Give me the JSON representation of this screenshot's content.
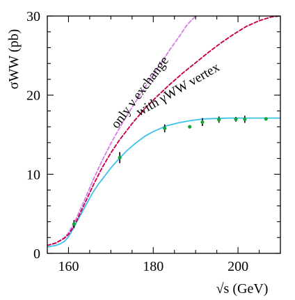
{
  "chart_data": {
    "type": "line",
    "xlabel": "√s (GeV)",
    "ylabel": "σWW (pb)",
    "xlim": [
      155,
      210
    ],
    "ylim": [
      0,
      30
    ],
    "xticks": [
      160,
      180,
      200
    ],
    "yticks": [
      0,
      10,
      20,
      30
    ],
    "grid": false,
    "colors": {
      "sm": "#3cc0ee",
      "nu_only": "#d67fe6",
      "no_zww": "#c8004a",
      "points": "#1aa33a",
      "errorbar": "#000000"
    },
    "annotations": [
      {
        "text": "only ν exchange",
        "anchor_x": 171.5,
        "anchor_y": 15.7,
        "rotation_deg": -53
      },
      {
        "text": "with γWW vertex",
        "anchor_x": 176.7,
        "anchor_y": 17.3,
        "rotation_deg": -30
      }
    ],
    "series": [
      {
        "style": "solid",
        "x": [
          155,
          157,
          158,
          159,
          160,
          161,
          162,
          163,
          164,
          165,
          166,
          167,
          168,
          170,
          172,
          174,
          176,
          178,
          180,
          183,
          186,
          189,
          192,
          195,
          198,
          201,
          204,
          207,
          210
        ],
        "y": [
          0.8,
          1.0,
          1.2,
          1.5,
          2.1,
          3.0,
          4.0,
          5.0,
          6.0,
          7.0,
          7.9,
          8.7,
          9.4,
          10.8,
          12.0,
          13.1,
          14.0,
          14.8,
          15.4,
          16.1,
          16.5,
          16.8,
          17.0,
          17.05,
          17.1,
          17.1,
          17.1,
          17.1,
          17.1
        ]
      },
      {
        "style": "dashed",
        "x": [
          155,
          157,
          159,
          160,
          161,
          162,
          164,
          166,
          168,
          170,
          172,
          174,
          176,
          178,
          180,
          182,
          184,
          186,
          188,
          190
        ],
        "y": [
          1.0,
          1.3,
          2.0,
          2.6,
          3.5,
          4.6,
          7.0,
          9.5,
          11.8,
          13.9,
          15.8,
          17.6,
          19.3,
          21.0,
          22.6,
          24.2,
          25.8,
          27.3,
          28.9,
          30.0
        ]
      },
      {
        "style": "dashed",
        "x": [
          155,
          157,
          159,
          160,
          161,
          162,
          164,
          166,
          168,
          170,
          172,
          175,
          178,
          181,
          184,
          187,
          190,
          193,
          196,
          199,
          202,
          205,
          208,
          210
        ],
        "y": [
          1.0,
          1.3,
          1.9,
          2.4,
          3.2,
          4.2,
          6.5,
          8.8,
          10.9,
          12.7,
          14.3,
          16.4,
          18.3,
          19.9,
          21.4,
          22.8,
          24.1,
          25.4,
          26.6,
          27.7,
          28.7,
          29.4,
          29.9,
          30.0
        ]
      }
    ],
    "measurements": [
      {
        "x": 161.3,
        "y": 3.7,
        "err": 0.5
      },
      {
        "x": 172.1,
        "y": 12.1,
        "err": 0.7
      },
      {
        "x": 182.7,
        "y": 15.8,
        "err": 0.5
      },
      {
        "x": 188.6,
        "y": 16.0,
        "err": 0.2
      },
      {
        "x": 191.6,
        "y": 16.6,
        "err": 0.5
      },
      {
        "x": 195.5,
        "y": 16.9,
        "err": 0.4
      },
      {
        "x": 199.5,
        "y": 16.95,
        "err": 0.3
      },
      {
        "x": 201.6,
        "y": 16.95,
        "err": 0.45
      },
      {
        "x": 206.6,
        "y": 17.0,
        "err": 0.2
      }
    ]
  }
}
